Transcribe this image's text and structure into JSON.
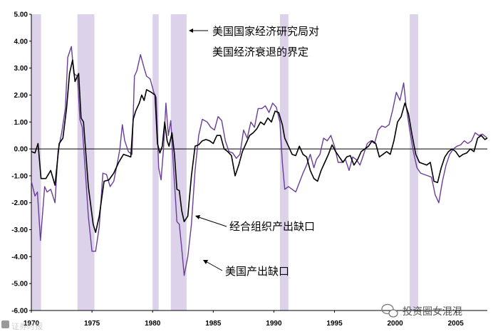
{
  "chart_data": {
    "type": "line",
    "xlim": [
      1970.0,
      2007.6
    ],
    "ylim": [
      -6,
      5
    ],
    "x_ticks": [
      1970,
      1975,
      1980,
      1985,
      1990,
      1995,
      2000,
      2005
    ],
    "x_tick_labels": [
      "1970",
      "1975",
      "1980",
      "1985",
      "1990",
      "1995",
      "2000",
      "2005"
    ],
    "y_ticks": [
      5,
      4,
      3,
      2,
      1,
      0,
      -1,
      -2,
      -3,
      -4,
      -5,
      -6
    ],
    "y_tick_labels": [
      "5.00",
      "4.00",
      "3.00",
      "2.00",
      "1.00",
      "0.00",
      "-1.00",
      "-2.00",
      "-3.00",
      "-4.00",
      "-5.00",
      "-6.00"
    ],
    "recessions": [
      {
        "start": 1970.0,
        "end": 1970.8
      },
      {
        "start": 1973.8,
        "end": 1975.2
      },
      {
        "start": 1980.0,
        "end": 1980.5
      },
      {
        "start": 1981.5,
        "end": 1982.8
      },
      {
        "start": 1990.5,
        "end": 1991.2
      },
      {
        "start": 2001.2,
        "end": 2001.9
      }
    ],
    "recession_color": "#dcd3ea",
    "series": [
      {
        "name": "经合组织产出缺口",
        "color": "#000000",
        "points": [
          [
            1970.0,
            -0.1
          ],
          [
            1970.3,
            -0.15
          ],
          [
            1970.55,
            0.2
          ],
          [
            1970.8,
            -1.1
          ],
          [
            1971.2,
            -1.1
          ],
          [
            1971.6,
            -0.8
          ],
          [
            1971.95,
            -1.35
          ],
          [
            1972.3,
            0.2
          ],
          [
            1972.6,
            0.4
          ],
          [
            1972.9,
            1.5
          ],
          [
            1973.15,
            2.8
          ],
          [
            1973.4,
            3.3
          ],
          [
            1973.6,
            2.5
          ],
          [
            1973.9,
            2.8
          ],
          [
            1974.1,
            1.15
          ],
          [
            1974.3,
            1.0
          ],
          [
            1974.7,
            -1.4
          ],
          [
            1975.1,
            -2.8
          ],
          [
            1975.3,
            -3.1
          ],
          [
            1975.6,
            -2.5
          ],
          [
            1976.0,
            -1.2
          ],
          [
            1976.4,
            -1.15
          ],
          [
            1976.8,
            -0.9
          ],
          [
            1977.2,
            -0.5
          ],
          [
            1977.6,
            -0.2
          ],
          [
            1977.9,
            -0.25
          ],
          [
            1978.2,
            -0.3
          ],
          [
            1978.4,
            1.1
          ],
          [
            1978.6,
            1.4
          ],
          [
            1978.9,
            1.7
          ],
          [
            1979.1,
            2.0
          ],
          [
            1979.3,
            1.8
          ],
          [
            1979.5,
            2.2
          ],
          [
            1979.7,
            2.15
          ],
          [
            1979.9,
            2.1
          ],
          [
            1980.2,
            2.0
          ],
          [
            1980.4,
            0.2
          ],
          [
            1980.6,
            -0.15
          ],
          [
            1980.8,
            0.1
          ],
          [
            1981.0,
            1.0
          ],
          [
            1981.2,
            0.3
          ],
          [
            1981.35,
            0.1
          ],
          [
            1981.6,
            0.6
          ],
          [
            1981.8,
            -0.2
          ],
          [
            1982.0,
            -1.5
          ],
          [
            1982.2,
            -1.55
          ],
          [
            1982.4,
            -2.3
          ],
          [
            1982.6,
            -2.7
          ],
          [
            1982.9,
            -2.5
          ],
          [
            1983.2,
            -1.0
          ],
          [
            1983.5,
            0.1
          ],
          [
            1983.8,
            0.15
          ],
          [
            1984.1,
            0.3
          ],
          [
            1984.4,
            0.35
          ],
          [
            1984.7,
            0.3
          ],
          [
            1985.0,
            0.2
          ],
          [
            1985.3,
            0.5
          ],
          [
            1985.6,
            0.5
          ],
          [
            1985.9,
            0.0
          ],
          [
            1986.2,
            -0.1
          ],
          [
            1986.5,
            -0.25
          ],
          [
            1986.8,
            -1.0
          ],
          [
            1987.1,
            -0.6
          ],
          [
            1987.4,
            -0.1
          ],
          [
            1987.7,
            0.2
          ],
          [
            1988.0,
            0.5
          ],
          [
            1988.3,
            0.6
          ],
          [
            1988.6,
            0.75
          ],
          [
            1988.9,
            1.0
          ],
          [
            1989.2,
            0.9
          ],
          [
            1989.5,
            1.15
          ],
          [
            1989.8,
            1.0
          ],
          [
            1990.1,
            1.4
          ],
          [
            1990.4,
            1.35
          ],
          [
            1990.7,
            0.9
          ],
          [
            1990.9,
            0.4
          ],
          [
            1991.2,
            0.1
          ],
          [
            1991.5,
            -0.2
          ],
          [
            1991.8,
            -0.25
          ],
          [
            1992.1,
            0.1
          ],
          [
            1992.4,
            -0.2
          ],
          [
            1992.7,
            -0.3
          ],
          [
            1993.0,
            -0.8
          ],
          [
            1993.3,
            -1.1
          ],
          [
            1993.6,
            -1.2
          ],
          [
            1993.9,
            -0.8
          ],
          [
            1994.2,
            -0.5
          ],
          [
            1994.5,
            -0.2
          ],
          [
            1994.8,
            0.15
          ],
          [
            1995.1,
            -0.1
          ],
          [
            1995.4,
            -0.3
          ],
          [
            1995.7,
            -0.5
          ],
          [
            1996.0,
            -0.3
          ],
          [
            1996.3,
            -0.25
          ],
          [
            1996.6,
            -0.6
          ],
          [
            1996.9,
            -0.4
          ],
          [
            1997.2,
            -0.1
          ],
          [
            1997.5,
            0.0
          ],
          [
            1997.8,
            0.1
          ],
          [
            1998.1,
            0.3
          ],
          [
            1998.4,
            0.2
          ],
          [
            1998.7,
            -0.3
          ],
          [
            1999.0,
            -0.2
          ],
          [
            1999.3,
            -0.1
          ],
          [
            1999.6,
            -0.2
          ],
          [
            1999.9,
            0.3
          ],
          [
            2000.2,
            1.0
          ],
          [
            2000.5,
            1.2
          ],
          [
            2000.8,
            1.7
          ],
          [
            2001.1,
            1.3
          ],
          [
            2001.4,
            0.5
          ],
          [
            2001.7,
            -0.2
          ],
          [
            2002.0,
            -0.5
          ],
          [
            2002.3,
            -0.55
          ],
          [
            2002.6,
            -0.6
          ],
          [
            2002.9,
            -0.5
          ],
          [
            2003.2,
            -1.2
          ],
          [
            2003.5,
            -1.25
          ],
          [
            2003.8,
            -0.7
          ],
          [
            2004.1,
            -0.3
          ],
          [
            2004.4,
            -0.1
          ],
          [
            2004.7,
            0.0
          ],
          [
            2005.0,
            -0.1
          ],
          [
            2005.3,
            -0.3
          ],
          [
            2005.6,
            -0.2
          ],
          [
            2005.9,
            -0.15
          ],
          [
            2006.2,
            0.0
          ],
          [
            2006.5,
            -0.1
          ],
          [
            2006.8,
            0.4
          ],
          [
            2007.1,
            0.5
          ],
          [
            2007.4,
            0.35
          ],
          [
            2007.6,
            0.4
          ]
        ]
      },
      {
        "name": "美国产出缺口",
        "color": "#6a3d9a",
        "points": [
          [
            1970.0,
            -1.2
          ],
          [
            1970.3,
            -1.75
          ],
          [
            1970.5,
            -1.6
          ],
          [
            1970.75,
            -3.4
          ],
          [
            1971.1,
            -1.4
          ],
          [
            1971.3,
            -1.6
          ],
          [
            1971.6,
            -1.5
          ],
          [
            1971.95,
            -2.0
          ],
          [
            1972.2,
            -0.1
          ],
          [
            1972.5,
            0.6
          ],
          [
            1972.8,
            1.5
          ],
          [
            1973.0,
            3.4
          ],
          [
            1973.3,
            3.8
          ],
          [
            1973.5,
            2.8
          ],
          [
            1973.8,
            2.7
          ],
          [
            1974.0,
            1.1
          ],
          [
            1974.2,
            0.8
          ],
          [
            1974.4,
            -0.5
          ],
          [
            1974.7,
            -2.5
          ],
          [
            1975.0,
            -3.8
          ],
          [
            1975.3,
            -3.8
          ],
          [
            1975.6,
            -2.9
          ],
          [
            1975.9,
            -0.9
          ],
          [
            1976.2,
            -0.95
          ],
          [
            1976.5,
            -1.4
          ],
          [
            1976.8,
            -1.2
          ],
          [
            1977.1,
            -0.5
          ],
          [
            1977.3,
            0.0
          ],
          [
            1977.5,
            0.9
          ],
          [
            1977.7,
            0.3
          ],
          [
            1978.0,
            -0.1
          ],
          [
            1978.3,
            -0.2
          ],
          [
            1978.5,
            2.7
          ],
          [
            1978.7,
            2.9
          ],
          [
            1979.0,
            3.5
          ],
          [
            1979.3,
            3.0
          ],
          [
            1979.5,
            2.7
          ],
          [
            1979.8,
            2.6
          ],
          [
            1980.1,
            2.1
          ],
          [
            1980.3,
            1.9
          ],
          [
            1980.5,
            -0.7
          ],
          [
            1980.7,
            -1.15
          ],
          [
            1980.9,
            0.0
          ],
          [
            1981.1,
            1.7
          ],
          [
            1981.3,
            0.5
          ],
          [
            1981.5,
            1.05
          ],
          [
            1981.7,
            -0.5
          ],
          [
            1982.0,
            -2.7
          ],
          [
            1982.2,
            -2.8
          ],
          [
            1982.4,
            -3.7
          ],
          [
            1982.6,
            -4.7
          ],
          [
            1982.9,
            -4.0
          ],
          [
            1983.2,
            -2.8
          ],
          [
            1983.5,
            -0.8
          ],
          [
            1983.8,
            0.5
          ],
          [
            1984.1,
            1.1
          ],
          [
            1984.5,
            1.0
          ],
          [
            1984.8,
            0.8
          ],
          [
            1985.1,
            0.7
          ],
          [
            1985.4,
            1.2
          ],
          [
            1985.7,
            1.05
          ],
          [
            1986.0,
            0.3
          ],
          [
            1986.3,
            -0.1
          ],
          [
            1986.6,
            -0.15
          ],
          [
            1986.9,
            -0.35
          ],
          [
            1987.2,
            -0.2
          ],
          [
            1987.5,
            0.7
          ],
          [
            1987.8,
            0.4
          ],
          [
            1988.1,
            1.0
          ],
          [
            1988.4,
            0.8
          ],
          [
            1988.7,
            1.5
          ],
          [
            1989.0,
            1.5
          ],
          [
            1989.3,
            1.6
          ],
          [
            1989.6,
            1.35
          ],
          [
            1989.9,
            1.7
          ],
          [
            1990.2,
            1.55
          ],
          [
            1990.5,
            1.0
          ],
          [
            1990.7,
            -0.5
          ],
          [
            1990.9,
            -1.5
          ],
          [
            1991.2,
            -1.4
          ],
          [
            1991.5,
            -1.5
          ],
          [
            1991.8,
            -1.6
          ],
          [
            1992.1,
            -1.25
          ],
          [
            1992.4,
            -0.9
          ],
          [
            1992.7,
            -0.6
          ],
          [
            1993.0,
            -0.2
          ],
          [
            1993.3,
            -0.7
          ],
          [
            1993.5,
            -0.4
          ],
          [
            1993.8,
            -0.2
          ],
          [
            1994.1,
            0.4
          ],
          [
            1994.4,
            0.3
          ],
          [
            1994.7,
            0.5
          ],
          [
            1995.0,
            0.1
          ],
          [
            1995.3,
            -0.5
          ],
          [
            1995.6,
            -0.5
          ],
          [
            1995.9,
            -0.4
          ],
          [
            1996.2,
            -0.8
          ],
          [
            1996.5,
            -0.3
          ],
          [
            1996.8,
            -0.4
          ],
          [
            1997.1,
            -0.6
          ],
          [
            1997.4,
            -0.2
          ],
          [
            1997.7,
            0.2
          ],
          [
            1998.0,
            0.3
          ],
          [
            1998.3,
            0.2
          ],
          [
            1998.6,
            0.7
          ],
          [
            1998.9,
            0.85
          ],
          [
            1999.2,
            0.8
          ],
          [
            1999.5,
            0.9
          ],
          [
            1999.8,
            1.45
          ],
          [
            2000.1,
            2.1
          ],
          [
            2000.4,
            1.8
          ],
          [
            2000.7,
            2.45
          ],
          [
            2000.9,
            1.6
          ],
          [
            2001.2,
            0.7
          ],
          [
            2001.5,
            -0.1
          ],
          [
            2001.8,
            -0.7
          ],
          [
            2002.1,
            -0.9
          ],
          [
            2002.4,
            -0.95
          ],
          [
            2002.7,
            -1.0
          ],
          [
            2003.0,
            -1.05
          ],
          [
            2003.3,
            -1.7
          ],
          [
            2003.6,
            -2.0
          ],
          [
            2003.9,
            -1.2
          ],
          [
            2004.2,
            -0.6
          ],
          [
            2004.5,
            -0.2
          ],
          [
            2004.8,
            0.0
          ],
          [
            2005.1,
            0.1
          ],
          [
            2005.4,
            0.15
          ],
          [
            2005.7,
            0.3
          ],
          [
            2006.0,
            0.2
          ],
          [
            2006.3,
            0.3
          ],
          [
            2006.6,
            0.6
          ],
          [
            2006.9,
            0.5
          ],
          [
            2007.2,
            0.55
          ],
          [
            2007.6,
            0.4
          ]
        ]
      }
    ],
    "annotations": {
      "recession_label_line1": "美国国家经济研究局对",
      "recession_label_line2": "美国经济衰退的界定",
      "oecd_label": "经合组织产出缺口",
      "us_label": "美国产出缺口"
    }
  },
  "watermark": {
    "text": "投资圈女混混",
    "icon": "wechat-icon"
  },
  "corner_mark": {
    "text": "证券时报"
  }
}
